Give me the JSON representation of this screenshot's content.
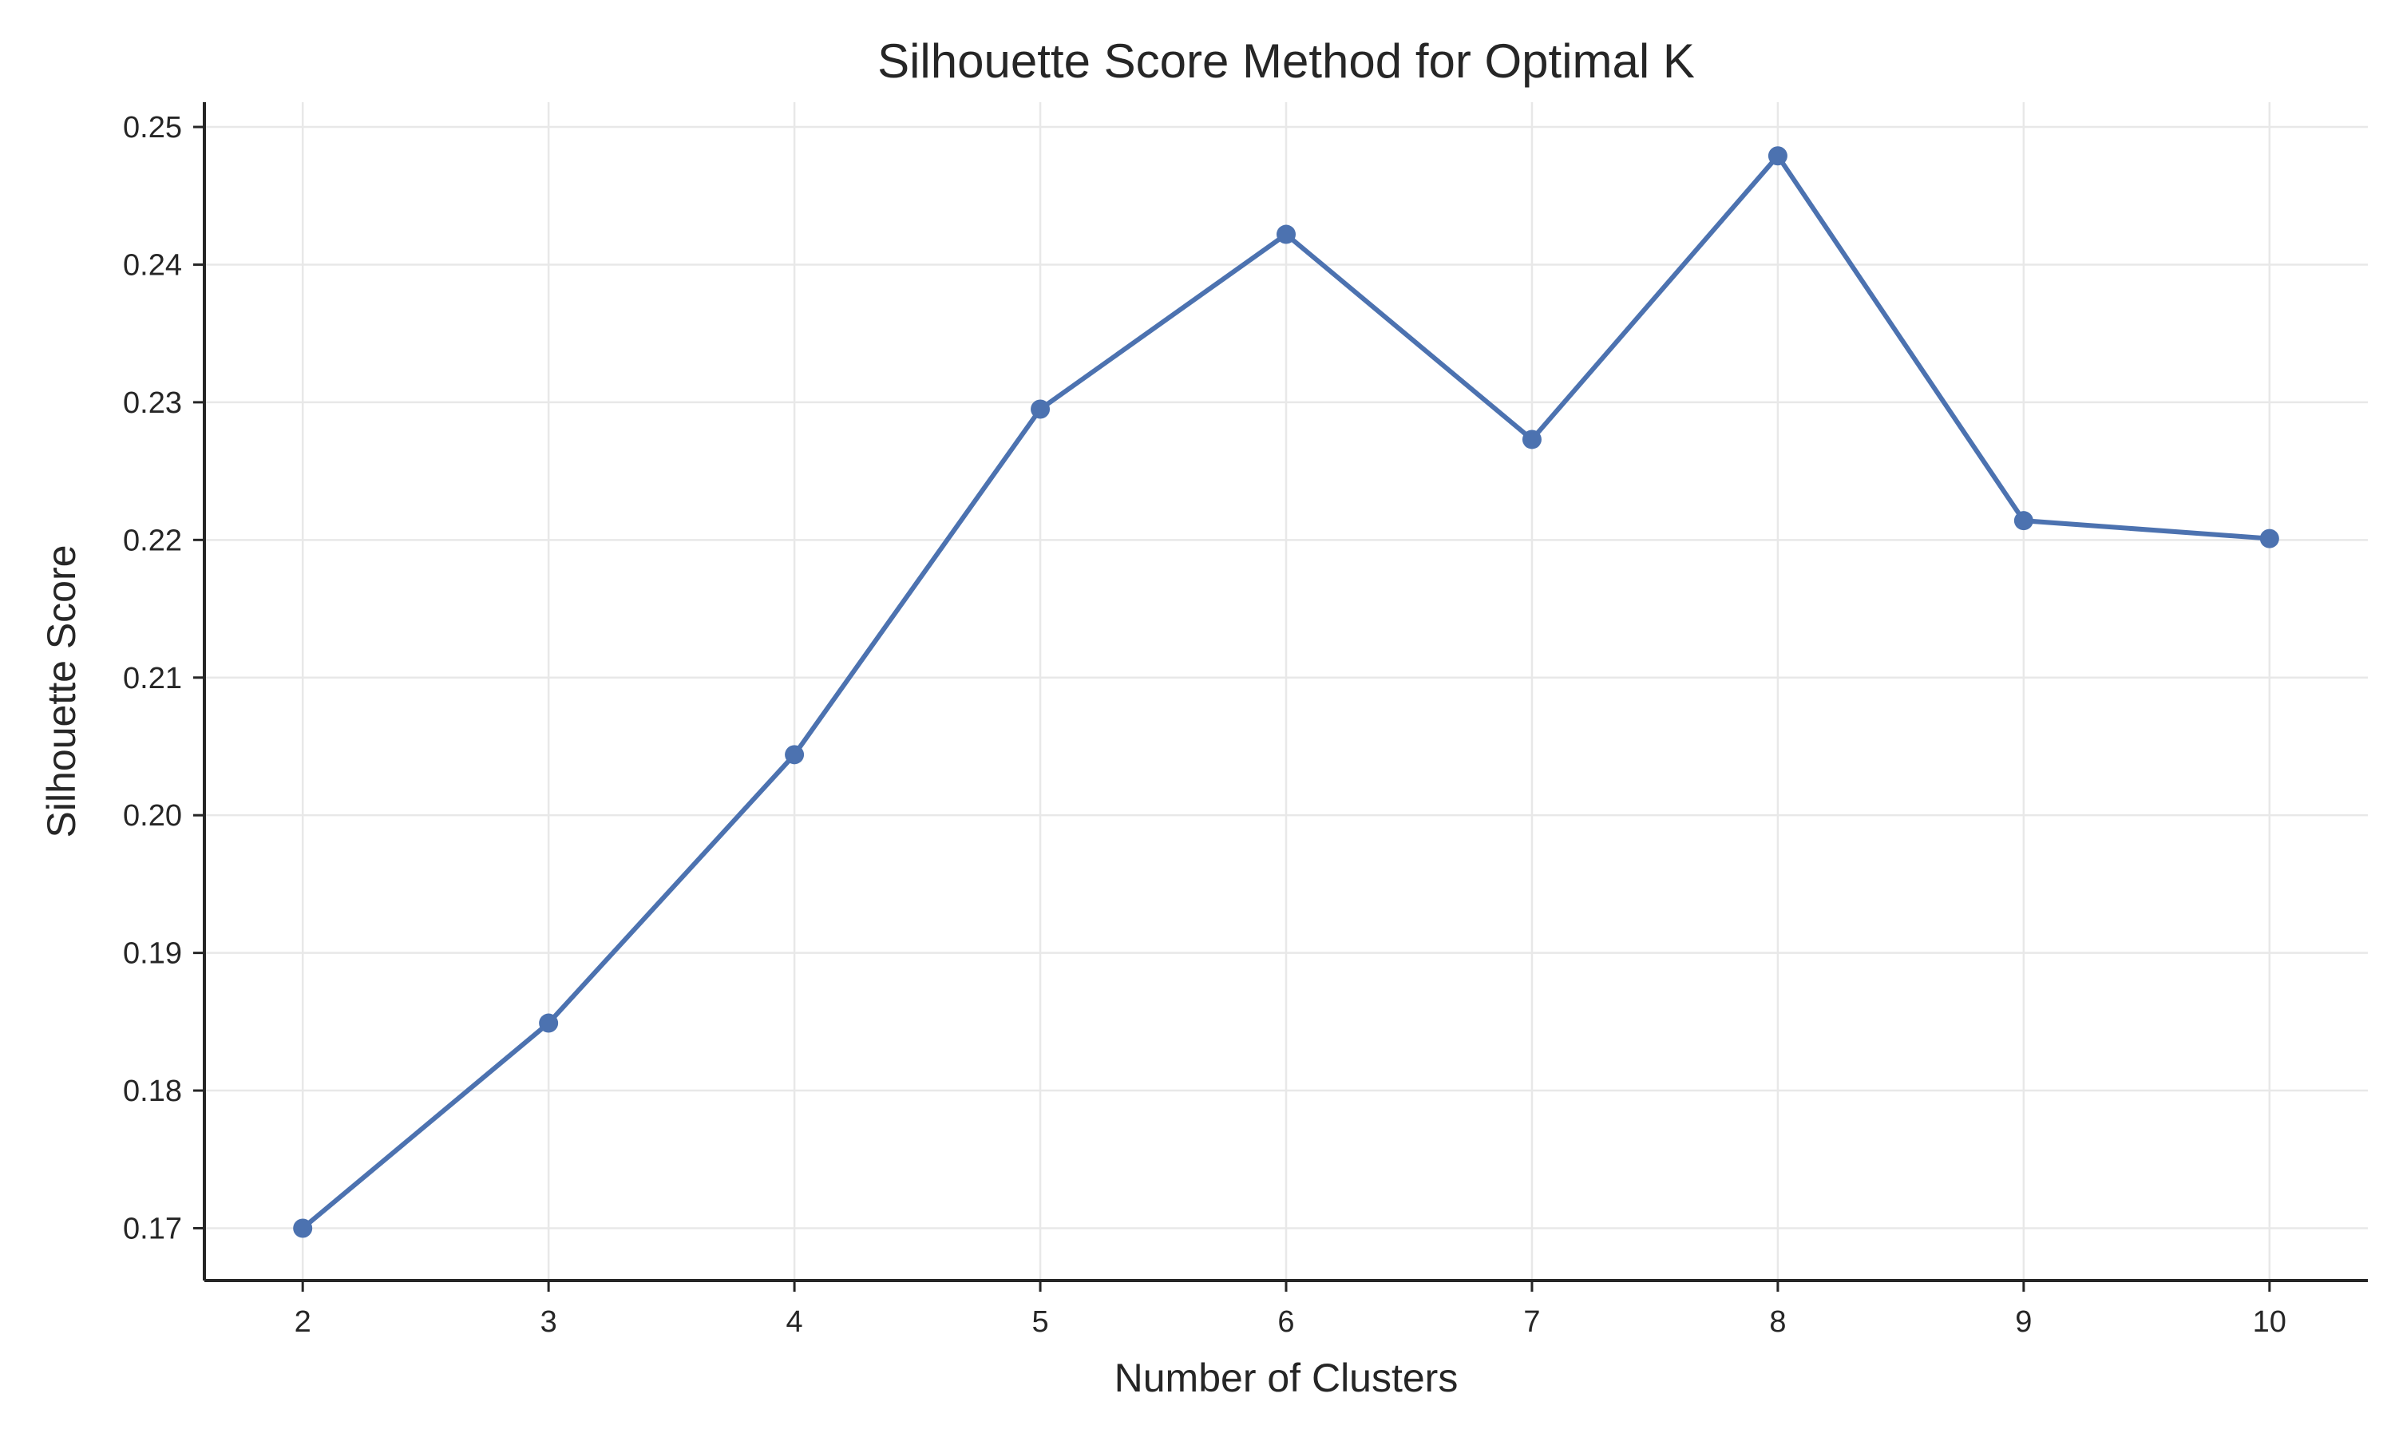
{
  "chart_data": {
    "type": "line",
    "title": "Silhouette Score Method for Optimal K",
    "xlabel": "Number of Clusters",
    "ylabel": "Silhouette Score",
    "x": [
      2,
      3,
      4,
      5,
      6,
      7,
      8,
      9,
      10
    ],
    "series": [
      {
        "values": [
          0.17,
          0.1849,
          0.2044,
          0.2295,
          0.2422,
          0.2273,
          0.2479,
          0.2214,
          0.2201
        ],
        "color": "#4c72b0",
        "marker": "circle"
      }
    ],
    "xticks": [
      "2",
      "3",
      "4",
      "5",
      "6",
      "7",
      "8",
      "9",
      "10"
    ],
    "yticks": [
      "0.17",
      "0.18",
      "0.19",
      "0.20",
      "0.21",
      "0.22",
      "0.23",
      "0.24",
      "0.25"
    ],
    "xlim": [
      1.6,
      10.4
    ],
    "ylim": [
      0.1662,
      0.2518
    ],
    "grid": true,
    "legend": "none"
  }
}
